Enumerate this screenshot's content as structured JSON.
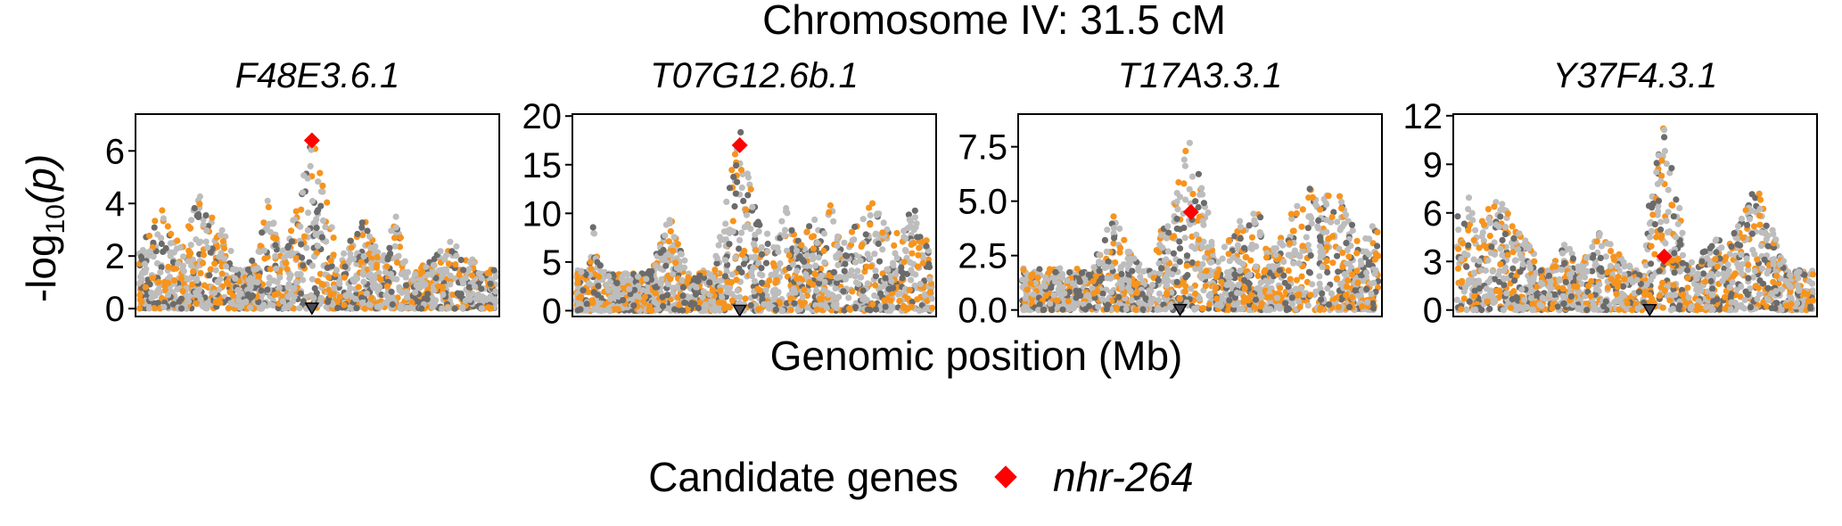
{
  "figure": {
    "title": "Chromosome IV: 31.5 cM",
    "xlabel": "Genomic position (Mb)",
    "ylabel_prefix": "-log",
    "ylabel_subscript": "10",
    "ylabel_var": "(p)"
  },
  "legend": {
    "title": "Candidate genes",
    "items": [
      {
        "label": "nhr-264",
        "color": "#ff0000",
        "shape": "diamond"
      }
    ],
    "position": "bottom"
  },
  "colors": {
    "light_gray": "#bdbdbd",
    "dark_gray": "#6b6b6b",
    "orange": "#f7941d",
    "candidate": "#ff0000",
    "gene_marker": "#4a4a5a"
  },
  "chart_data": [
    {
      "type": "scatter",
      "title": "F48E3.6.1",
      "ylim": [
        -0.3,
        7.4
      ],
      "yticks": [
        0,
        2,
        4,
        6
      ],
      "ytick_labels": [
        "0",
        "2",
        "4",
        "6"
      ],
      "candidate": {
        "label": "nhr-264",
        "x": 0.485,
        "y": 6.4
      },
      "gene_x": 0.485,
      "background_points": 1500,
      "max_y": 7.0
    },
    {
      "type": "scatter",
      "title": "T07G12.6b.1",
      "ylim": [
        -0.6,
        20.2
      ],
      "yticks": [
        0,
        5,
        10,
        15,
        20
      ],
      "ytick_labels": [
        "0",
        "5",
        "10",
        "15",
        "20"
      ],
      "candidate": {
        "label": "nhr-264",
        "x": 0.46,
        "y": 17
      },
      "gene_x": 0.46,
      "background_points": 1500,
      "max_y": 19.0
    },
    {
      "type": "scatter",
      "title": "T17A3.3.1",
      "ylim": [
        -0.3,
        9.0
      ],
      "yticks": [
        0,
        2.5,
        5,
        7.5
      ],
      "ytick_labels": [
        "0.0",
        "2.5",
        "5.0",
        "7.5"
      ],
      "candidate": {
        "label": "nhr-264",
        "x": 0.475,
        "y": 4.5
      },
      "gene_x": 0.445,
      "background_points": 1500,
      "max_y": 8.7
    },
    {
      "type": "scatter",
      "title": "Y37F4.3.1",
      "ylim": [
        -0.4,
        12.1
      ],
      "yticks": [
        0,
        3,
        6,
        9,
        12
      ],
      "ytick_labels": [
        "0",
        "3",
        "6",
        "9",
        "12"
      ],
      "candidate": {
        "label": "nhr-264",
        "x": 0.58,
        "y": 3.3
      },
      "gene_x": 0.54,
      "background_points": 1500,
      "max_y": 11.5
    }
  ]
}
